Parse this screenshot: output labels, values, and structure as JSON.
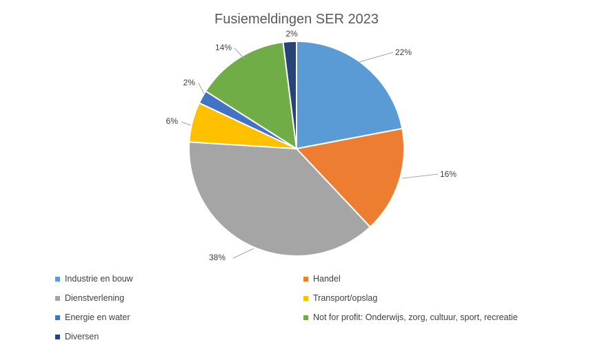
{
  "chart_data": {
    "type": "pie",
    "title": "Fusiemeldingen SER 2023",
    "categories": [
      "Industrie en bouw",
      "Handel",
      "Dienstverlening",
      "Transport/opslag",
      "Energie en water",
      "Not for profit: Onderwijs, zorg, cultuur, sport, recreatie",
      "Diversen"
    ],
    "values": [
      22,
      16,
      38,
      6,
      2,
      14,
      2
    ],
    "labels": [
      "22%",
      "16%",
      "38%",
      "6%",
      "2%",
      "14%",
      "2%"
    ],
    "colors": [
      "#5B9BD5",
      "#ED7D31",
      "#A5A5A5",
      "#FFC000",
      "#4472C4",
      "#70AD47",
      "#264478"
    ],
    "legend_position": "bottom"
  }
}
